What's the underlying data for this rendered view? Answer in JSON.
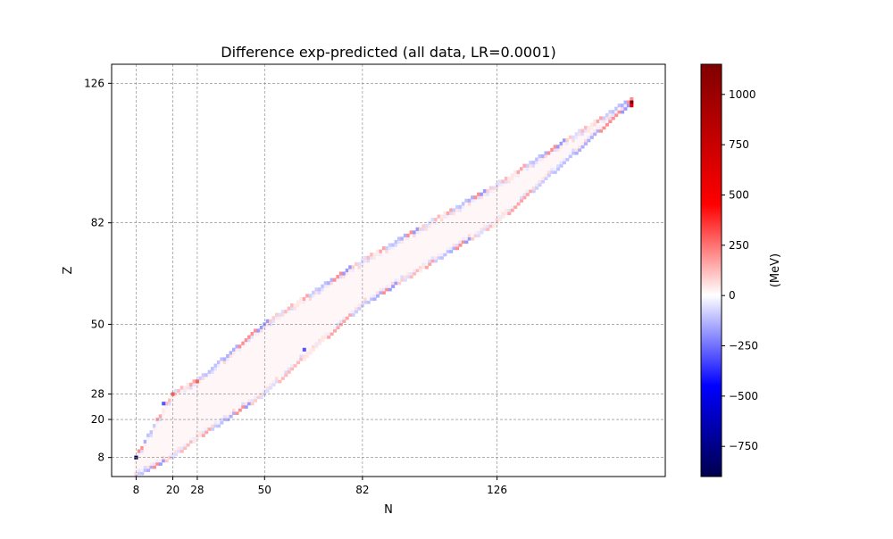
{
  "chart_data": {
    "type": "heatmap",
    "title": "Difference exp-predicted (all data, LR=0.0001)",
    "xlabel": "N",
    "ylabel": "Z",
    "x_ticks": [
      8,
      20,
      28,
      50,
      82,
      126
    ],
    "y_ticks": [
      8,
      20,
      28,
      50,
      82,
      126
    ],
    "xlim": [
      0,
      181
    ],
    "ylim": [
      2,
      132
    ],
    "grid": true,
    "grid_lines_at_ticks": true,
    "colorbar": {
      "label": "(MeV)",
      "colormap": "seismic",
      "vmin": -900,
      "vmax": 1150,
      "ticks": [
        1000,
        750,
        500,
        250,
        0,
        -250,
        -500,
        -750
      ],
      "tick_labels": [
        "1000",
        "750",
        "500",
        "250",
        "0",
        "−250",
        "−500",
        "−750"
      ]
    },
    "region": {
      "description": "nuclear chart band of measured nuclei",
      "lower_edge": [
        [
          8,
          2
        ],
        [
          20,
          8
        ],
        [
          28,
          14
        ],
        [
          50,
          28
        ],
        [
          82,
          56
        ],
        [
          126,
          82
        ],
        [
          170,
          120
        ]
      ],
      "upper_edge": [
        [
          8,
          8
        ],
        [
          20,
          28
        ],
        [
          28,
          32
        ],
        [
          50,
          50
        ],
        [
          82,
          70
        ],
        [
          126,
          94
        ],
        [
          170,
          121
        ]
      ],
      "fill_value": 15
    },
    "highlighted_values": [
      {
        "N": 8,
        "Z": 8,
        "value": -880
      },
      {
        "N": 170,
        "Z": 120,
        "value": 1150
      },
      {
        "N": 170,
        "Z": 119,
        "value": 650
      },
      {
        "N": 20,
        "Z": 28,
        "value": 300
      },
      {
        "N": 28,
        "Z": 32,
        "value": 280
      },
      {
        "N": 17,
        "Z": 25,
        "value": -300
      },
      {
        "N": 63,
        "Z": 42,
        "value": -300
      }
    ]
  }
}
